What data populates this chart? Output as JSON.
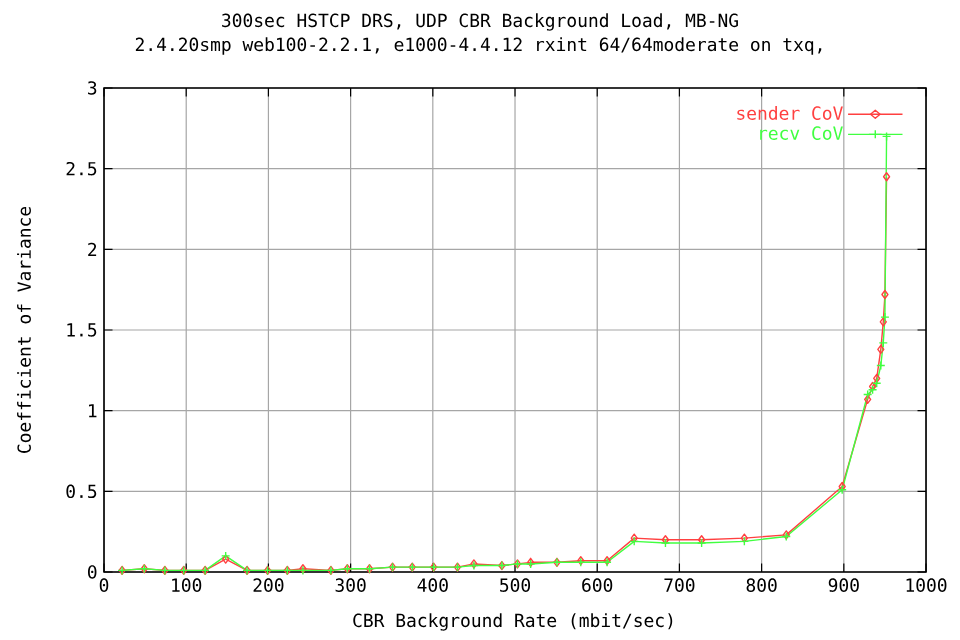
{
  "chart_data": {
    "type": "line",
    "title": "300sec HSTCP DRS, UDP CBR Background Load, MB-NG",
    "subtitle": "2.4.20smp web100-2.2.1, e1000-4.4.12 rxint 64/64moderate on txq,",
    "xlabel": "CBR Background Rate (mbit/sec)",
    "ylabel": "Coefficient of Variance",
    "xlim": [
      0,
      1000
    ],
    "ylim": [
      0,
      3
    ],
    "xticks": [
      0,
      100,
      200,
      300,
      400,
      500,
      600,
      700,
      800,
      900,
      1000
    ],
    "yticks": [
      0,
      0.5,
      1,
      1.5,
      2,
      2.5,
      3
    ],
    "grid": true,
    "legend": "top right",
    "series": [
      {
        "name": "sender CoV",
        "color": "#ff4040",
        "marker": "diamond",
        "x": [
          22,
          49,
          74,
          97,
          123,
          148,
          174,
          199,
          223,
          242,
          276,
          296,
          323,
          351,
          375,
          401,
          430,
          450,
          484,
          503,
          519,
          551,
          580,
          612,
          645,
          683,
          727,
          779,
          830,
          898,
          929,
          935,
          940,
          945,
          948,
          950,
          952
        ],
        "values": [
          0.01,
          0.02,
          0.01,
          0.01,
          0.01,
          0.08,
          0.01,
          0.01,
          0.01,
          0.02,
          0.01,
          0.02,
          0.02,
          0.03,
          0.03,
          0.03,
          0.03,
          0.05,
          0.04,
          0.05,
          0.06,
          0.06,
          0.07,
          0.07,
          0.21,
          0.2,
          0.2,
          0.21,
          0.23,
          0.53,
          1.07,
          1.15,
          1.2,
          1.38,
          1.55,
          1.72,
          2.45
        ]
      },
      {
        "name": "recv CoV",
        "color": "#40ff40",
        "marker": "cross",
        "x": [
          22,
          49,
          74,
          97,
          123,
          148,
          174,
          199,
          223,
          242,
          276,
          296,
          323,
          351,
          375,
          401,
          430,
          450,
          484,
          503,
          519,
          551,
          580,
          612,
          645,
          683,
          727,
          779,
          830,
          898,
          929,
          935,
          940,
          945,
          948,
          950,
          952
        ],
        "values": [
          0.01,
          0.02,
          0.01,
          0.01,
          0.01,
          0.1,
          0.01,
          0.01,
          0.01,
          0.01,
          0.01,
          0.02,
          0.02,
          0.03,
          0.03,
          0.03,
          0.03,
          0.04,
          0.04,
          0.05,
          0.05,
          0.06,
          0.06,
          0.06,
          0.19,
          0.18,
          0.18,
          0.19,
          0.22,
          0.51,
          1.1,
          1.13,
          1.17,
          1.28,
          1.42,
          1.58,
          2.7
        ]
      }
    ]
  }
}
